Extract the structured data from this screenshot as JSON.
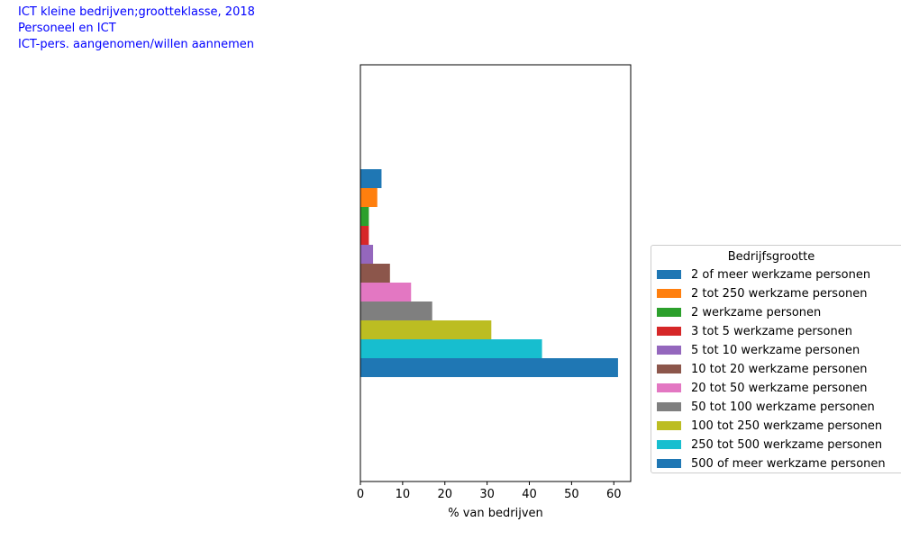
{
  "titles": [
    "ICT kleine bedrijven;grootteklasse, 2018",
    "Personeel en ICT",
    "ICT-pers. aangenomen/willen aannemen"
  ],
  "chart_data": {
    "type": "bar",
    "orientation": "horizontal",
    "xlabel": "% van bedrijven",
    "xlim": [
      0,
      64
    ],
    "xticks": [
      "0",
      "10",
      "20",
      "30",
      "40",
      "50",
      "60"
    ],
    "legend_title": "Bedrijfsgrootte",
    "legend_position": "right",
    "grid": false,
    "series": [
      {
        "name": "2 of meer werkzame personen",
        "value": 5,
        "color": "#1f77b4"
      },
      {
        "name": "2 tot 250 werkzame personen",
        "value": 4,
        "color": "#ff7f0e"
      },
      {
        "name": "2 werkzame personen",
        "value": 2,
        "color": "#2ca02c"
      },
      {
        "name": "3 tot 5 werkzame personen",
        "value": 2,
        "color": "#d62728"
      },
      {
        "name": "5 tot 10 werkzame personen",
        "value": 3,
        "color": "#9467bd"
      },
      {
        "name": "10 tot 20 werkzame personen",
        "value": 7,
        "color": "#8c564b"
      },
      {
        "name": "20 tot 50 werkzame personen",
        "value": 12,
        "color": "#e377c2"
      },
      {
        "name": "50 tot 100 werkzame personen",
        "value": 17,
        "color": "#7f7f7f"
      },
      {
        "name": "100 tot 250 werkzame personen",
        "value": 31,
        "color": "#bcbd22"
      },
      {
        "name": "250 tot 500 werkzame personen",
        "value": 43,
        "color": "#17becf"
      },
      {
        "name": "500 of meer werkzame personen",
        "value": 61,
        "color": "#1f77b4"
      }
    ]
  }
}
